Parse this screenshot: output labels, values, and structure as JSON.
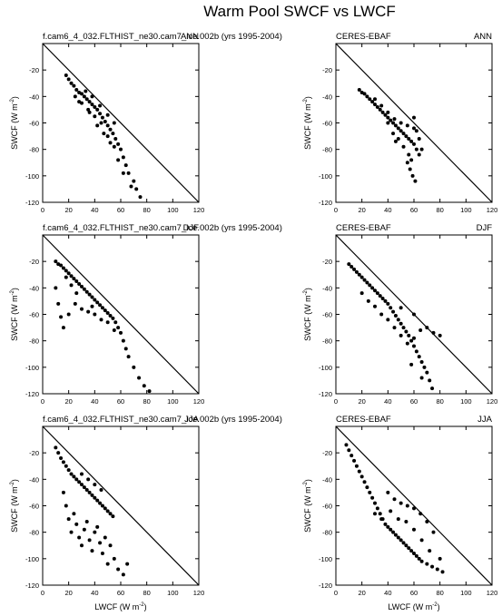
{
  "figure": {
    "title": "Warm Pool SWCF vs LWCF"
  },
  "axis": {
    "xlabel": "LWCF (W m",
    "ylabel": "SWCF (W m",
    "unit_exponent": "-2"
  },
  "chart_data": [
    {
      "type": "scatter",
      "left_title": "f.cam6_4_032.FLTHIST_ne30.cam7_ice.002b (yrs 1995-2004)",
      "right_title": "ANN",
      "xlim": [
        0,
        120
      ],
      "ylim": [
        -120,
        0
      ],
      "xticks": [
        0,
        20,
        40,
        60,
        80,
        100,
        120
      ],
      "yticks": [
        -120,
        -100,
        -80,
        -60,
        -40,
        -20
      ],
      "reference_line": [
        [
          0,
          0
        ],
        [
          120,
          -120
        ]
      ],
      "points": [
        [
          18,
          -24
        ],
        [
          20,
          -27
        ],
        [
          22,
          -30
        ],
        [
          24,
          -32
        ],
        [
          26,
          -35
        ],
        [
          28,
          -37
        ],
        [
          30,
          -38
        ],
        [
          32,
          -40
        ],
        [
          34,
          -42
        ],
        [
          36,
          -44
        ],
        [
          38,
          -46
        ],
        [
          40,
          -48
        ],
        [
          42,
          -50
        ],
        [
          44,
          -53
        ],
        [
          46,
          -56
        ],
        [
          48,
          -59
        ],
        [
          50,
          -62
        ],
        [
          52,
          -65
        ],
        [
          54,
          -68
        ],
        [
          56,
          -72
        ],
        [
          58,
          -76
        ],
        [
          60,
          -80
        ],
        [
          62,
          -86
        ],
        [
          64,
          -92
        ],
        [
          66,
          -98
        ],
        [
          70,
          -104
        ],
        [
          72,
          -110
        ],
        [
          75,
          -116
        ],
        [
          25,
          -40
        ],
        [
          30,
          -45
        ],
        [
          35,
          -50
        ],
        [
          40,
          -55
        ],
        [
          45,
          -60
        ],
        [
          50,
          -70
        ],
        [
          55,
          -78
        ],
        [
          58,
          -88
        ],
        [
          62,
          -98
        ],
        [
          68,
          -108
        ],
        [
          42,
          -62
        ],
        [
          47,
          -68
        ],
        [
          52,
          -75
        ],
        [
          36,
          -52
        ],
        [
          28,
          -44
        ],
        [
          33,
          -36
        ],
        [
          38,
          -40
        ],
        [
          44,
          -47
        ],
        [
          50,
          -54
        ],
        [
          55,
          -60
        ]
      ]
    },
    {
      "type": "scatter",
      "left_title": "CERES-EBAF",
      "right_title": "ANN",
      "xlim": [
        0,
        120
      ],
      "ylim": [
        -120,
        0
      ],
      "xticks": [
        0,
        20,
        40,
        60,
        80,
        100,
        120
      ],
      "yticks": [
        -120,
        -100,
        -80,
        -60,
        -40,
        -20
      ],
      "reference_line": [
        [
          0,
          0
        ],
        [
          120,
          -120
        ]
      ],
      "points": [
        [
          18,
          -35
        ],
        [
          20,
          -37
        ],
        [
          22,
          -38
        ],
        [
          24,
          -40
        ],
        [
          26,
          -42
        ],
        [
          28,
          -44
        ],
        [
          30,
          -46
        ],
        [
          32,
          -48
        ],
        [
          34,
          -50
        ],
        [
          36,
          -52
        ],
        [
          38,
          -54
        ],
        [
          40,
          -56
        ],
        [
          42,
          -58
        ],
        [
          44,
          -60
        ],
        [
          46,
          -62
        ],
        [
          48,
          -64
        ],
        [
          50,
          -66
        ],
        [
          52,
          -68
        ],
        [
          54,
          -70
        ],
        [
          56,
          -72
        ],
        [
          58,
          -74
        ],
        [
          60,
          -76
        ],
        [
          62,
          -80
        ],
        [
          64,
          -84
        ],
        [
          55,
          -90
        ],
        [
          57,
          -95
        ],
        [
          59,
          -100
        ],
        [
          61,
          -104
        ],
        [
          30,
          -42
        ],
        [
          35,
          -47
        ],
        [
          40,
          -52
        ],
        [
          45,
          -57
        ],
        [
          50,
          -60
        ],
        [
          55,
          -62
        ],
        [
          60,
          -64
        ],
        [
          62,
          -66
        ],
        [
          48,
          -72
        ],
        [
          52,
          -78
        ],
        [
          44,
          -68
        ],
        [
          56,
          -84
        ],
        [
          64,
          -72
        ],
        [
          60,
          -56
        ],
        [
          40,
          -60
        ],
        [
          46,
          -74
        ],
        [
          58,
          -88
        ],
        [
          66,
          -80
        ]
      ]
    },
    {
      "type": "scatter",
      "left_title": "f.cam6_4_032.FLTHIST_ne30.cam7_ice.002b (yrs 1995-2004)",
      "right_title": "DJF",
      "xlim": [
        0,
        120
      ],
      "ylim": [
        -120,
        0
      ],
      "xticks": [
        0,
        20,
        40,
        60,
        80,
        100,
        120
      ],
      "yticks": [
        -120,
        -100,
        -80,
        -60,
        -40,
        -20
      ],
      "reference_line": [
        [
          0,
          0
        ],
        [
          120,
          -120
        ]
      ],
      "points": [
        [
          10,
          -20
        ],
        [
          12,
          -22
        ],
        [
          14,
          -23
        ],
        [
          16,
          -25
        ],
        [
          18,
          -27
        ],
        [
          20,
          -29
        ],
        [
          22,
          -31
        ],
        [
          24,
          -33
        ],
        [
          26,
          -35
        ],
        [
          28,
          -37
        ],
        [
          30,
          -39
        ],
        [
          32,
          -41
        ],
        [
          34,
          -43
        ],
        [
          36,
          -45
        ],
        [
          38,
          -47
        ],
        [
          40,
          -49
        ],
        [
          42,
          -51
        ],
        [
          44,
          -53
        ],
        [
          46,
          -55
        ],
        [
          48,
          -57
        ],
        [
          50,
          -59
        ],
        [
          52,
          -61
        ],
        [
          54,
          -63
        ],
        [
          56,
          -66
        ],
        [
          58,
          -70
        ],
        [
          60,
          -74
        ],
        [
          62,
          -80
        ],
        [
          64,
          -86
        ],
        [
          66,
          -92
        ],
        [
          70,
          -100
        ],
        [
          74,
          -108
        ],
        [
          78,
          -114
        ],
        [
          82,
          -118
        ],
        [
          10,
          -40
        ],
        [
          12,
          -52
        ],
        [
          14,
          -62
        ],
        [
          16,
          -70
        ],
        [
          20,
          -60
        ],
        [
          25,
          -52
        ],
        [
          30,
          -56
        ],
        [
          35,
          -58
        ],
        [
          40,
          -60
        ],
        [
          45,
          -64
        ],
        [
          50,
          -66
        ],
        [
          18,
          -32
        ],
        [
          22,
          -38
        ],
        [
          26,
          -44
        ],
        [
          38,
          -54
        ],
        [
          55,
          -72
        ]
      ]
    },
    {
      "type": "scatter",
      "left_title": "CERES-EBAF",
      "right_title": "DJF",
      "xlim": [
        0,
        120
      ],
      "ylim": [
        -120,
        0
      ],
      "xticks": [
        0,
        20,
        40,
        60,
        80,
        100,
        120
      ],
      "yticks": [
        -120,
        -100,
        -80,
        -60,
        -40,
        -20
      ],
      "reference_line": [
        [
          0,
          0
        ],
        [
          120,
          -120
        ]
      ],
      "points": [
        [
          10,
          -22
        ],
        [
          12,
          -24
        ],
        [
          14,
          -26
        ],
        [
          16,
          -28
        ],
        [
          18,
          -30
        ],
        [
          20,
          -32
        ],
        [
          22,
          -34
        ],
        [
          24,
          -36
        ],
        [
          26,
          -38
        ],
        [
          28,
          -40
        ],
        [
          30,
          -42
        ],
        [
          32,
          -44
        ],
        [
          34,
          -46
        ],
        [
          36,
          -48
        ],
        [
          38,
          -50
        ],
        [
          40,
          -52
        ],
        [
          42,
          -55
        ],
        [
          44,
          -58
        ],
        [
          46,
          -61
        ],
        [
          48,
          -64
        ],
        [
          50,
          -67
        ],
        [
          52,
          -70
        ],
        [
          54,
          -73
        ],
        [
          56,
          -76
        ],
        [
          58,
          -80
        ],
        [
          60,
          -84
        ],
        [
          62,
          -88
        ],
        [
          64,
          -92
        ],
        [
          66,
          -96
        ],
        [
          68,
          -100
        ],
        [
          70,
          -104
        ],
        [
          72,
          -110
        ],
        [
          74,
          -116
        ],
        [
          20,
          -44
        ],
        [
          25,
          -50
        ],
        [
          30,
          -54
        ],
        [
          35,
          -60
        ],
        [
          40,
          -64
        ],
        [
          45,
          -70
        ],
        [
          50,
          -76
        ],
        [
          55,
          -82
        ],
        [
          60,
          -78
        ],
        [
          65,
          -72
        ],
        [
          70,
          -70
        ],
        [
          75,
          -74
        ],
        [
          80,
          -76
        ],
        [
          60,
          -60
        ],
        [
          50,
          -55
        ],
        [
          58,
          -98
        ],
        [
          66,
          -108
        ]
      ]
    },
    {
      "type": "scatter",
      "left_title": "f.cam6_4_032.FLTHIST_ne30.cam7_ice.002b (yrs 1995-2004)",
      "right_title": "JJA",
      "xlim": [
        0,
        120
      ],
      "ylim": [
        -120,
        0
      ],
      "xticks": [
        0,
        20,
        40,
        60,
        80,
        100,
        120
      ],
      "yticks": [
        -120,
        -100,
        -80,
        -60,
        -40,
        -20
      ],
      "reference_line": [
        [
          0,
          0
        ],
        [
          120,
          -120
        ]
      ],
      "points": [
        [
          10,
          -16
        ],
        [
          12,
          -20
        ],
        [
          14,
          -24
        ],
        [
          16,
          -27
        ],
        [
          18,
          -30
        ],
        [
          20,
          -33
        ],
        [
          22,
          -36
        ],
        [
          24,
          -38
        ],
        [
          26,
          -40
        ],
        [
          28,
          -42
        ],
        [
          30,
          -44
        ],
        [
          32,
          -46
        ],
        [
          34,
          -48
        ],
        [
          36,
          -50
        ],
        [
          38,
          -52
        ],
        [
          40,
          -54
        ],
        [
          42,
          -56
        ],
        [
          44,
          -58
        ],
        [
          46,
          -60
        ],
        [
          48,
          -62
        ],
        [
          50,
          -64
        ],
        [
          52,
          -66
        ],
        [
          54,
          -68
        ],
        [
          16,
          -50
        ],
        [
          18,
          -60
        ],
        [
          20,
          -70
        ],
        [
          22,
          -80
        ],
        [
          24,
          -66
        ],
        [
          26,
          -74
        ],
        [
          28,
          -84
        ],
        [
          30,
          -90
        ],
        [
          32,
          -78
        ],
        [
          34,
          -72
        ],
        [
          36,
          -86
        ],
        [
          38,
          -94
        ],
        [
          40,
          -80
        ],
        [
          42,
          -76
        ],
        [
          44,
          -88
        ],
        [
          46,
          -96
        ],
        [
          48,
          -84
        ],
        [
          50,
          -104
        ],
        [
          52,
          -90
        ],
        [
          55,
          -100
        ],
        [
          58,
          -108
        ],
        [
          62,
          -112
        ],
        [
          65,
          -104
        ],
        [
          30,
          -36
        ],
        [
          35,
          -40
        ],
        [
          40,
          -44
        ],
        [
          45,
          -48
        ]
      ]
    },
    {
      "type": "scatter",
      "left_title": "CERES-EBAF",
      "right_title": "JJA",
      "xlim": [
        0,
        120
      ],
      "ylim": [
        -120,
        0
      ],
      "xticks": [
        0,
        20,
        40,
        60,
        80,
        100,
        120
      ],
      "yticks": [
        -120,
        -100,
        -80,
        -60,
        -40,
        -20
      ],
      "reference_line": [
        [
          0,
          0
        ],
        [
          120,
          -120
        ]
      ],
      "points": [
        [
          8,
          -14
        ],
        [
          10,
          -18
        ],
        [
          12,
          -22
        ],
        [
          14,
          -26
        ],
        [
          16,
          -30
        ],
        [
          18,
          -34
        ],
        [
          20,
          -38
        ],
        [
          22,
          -42
        ],
        [
          24,
          -46
        ],
        [
          26,
          -50
        ],
        [
          28,
          -54
        ],
        [
          30,
          -58
        ],
        [
          32,
          -62
        ],
        [
          34,
          -66
        ],
        [
          36,
          -70
        ],
        [
          38,
          -74
        ],
        [
          40,
          -76
        ],
        [
          42,
          -78
        ],
        [
          44,
          -80
        ],
        [
          46,
          -82
        ],
        [
          48,
          -84
        ],
        [
          50,
          -86
        ],
        [
          52,
          -88
        ],
        [
          54,
          -90
        ],
        [
          56,
          -92
        ],
        [
          58,
          -94
        ],
        [
          60,
          -96
        ],
        [
          62,
          -98
        ],
        [
          64,
          -100
        ],
        [
          66,
          -102
        ],
        [
          70,
          -104
        ],
        [
          74,
          -106
        ],
        [
          78,
          -108
        ],
        [
          82,
          -110
        ],
        [
          40,
          -50
        ],
        [
          45,
          -55
        ],
        [
          50,
          -58
        ],
        [
          55,
          -60
        ],
        [
          60,
          -62
        ],
        [
          65,
          -66
        ],
        [
          70,
          -72
        ],
        [
          75,
          -80
        ],
        [
          30,
          -66
        ],
        [
          35,
          -70
        ],
        [
          42,
          -64
        ],
        [
          48,
          -70
        ],
        [
          54,
          -72
        ],
        [
          60,
          -78
        ],
        [
          66,
          -86
        ],
        [
          72,
          -94
        ],
        [
          80,
          -100
        ]
      ]
    }
  ]
}
